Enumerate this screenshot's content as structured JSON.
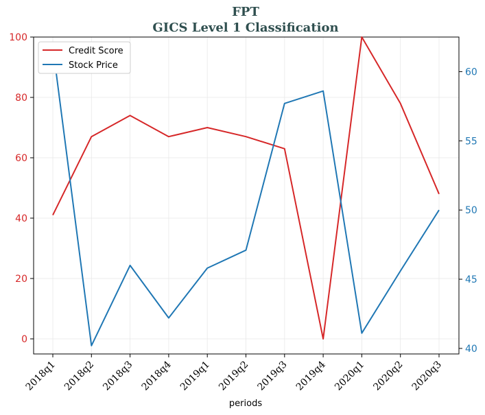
{
  "chart_data": {
    "type": "line",
    "title": "FPT",
    "subtitle": "GICS Level 1 Classification",
    "xlabel": "periods",
    "ylabel_left": "",
    "ylabel_right": "",
    "categories": [
      "2018q1",
      "2018q2",
      "2018q3",
      "2018q4",
      "2019q1",
      "2019q2",
      "2019q3",
      "2019q4",
      "2020q1",
      "2020q2",
      "2020q3"
    ],
    "ylim_left": [
      -5,
      100
    ],
    "ylim_right": [
      39.6,
      62.5
    ],
    "yticks_left": [
      0,
      20,
      40,
      60,
      80,
      100
    ],
    "yticks_right": [
      40,
      45,
      50,
      55,
      60
    ],
    "grid": true,
    "legend_position": "top-left",
    "series": [
      {
        "name": "Credit Score",
        "axis": "left",
        "color": "#d62728",
        "values": [
          41,
          67,
          74,
          67,
          70,
          67,
          63,
          0,
          100,
          78,
          48
        ]
      },
      {
        "name": "Stock Price",
        "axis": "right",
        "color": "#1f77b4",
        "values": [
          61.8,
          40.2,
          46.0,
          42.2,
          45.8,
          47.1,
          57.7,
          58.6,
          41.1,
          45.6,
          50.0
        ]
      }
    ]
  }
}
